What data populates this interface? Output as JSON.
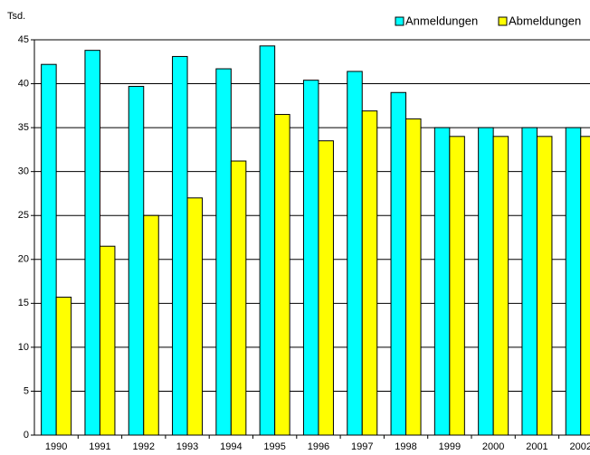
{
  "chart_data": {
    "type": "bar",
    "y_axis_label": "Tsd.",
    "categories": [
      "1990",
      "1991",
      "1992",
      "1993",
      "1994",
      "1995",
      "1996",
      "1997",
      "1998",
      "1999",
      "2000",
      "2001",
      "2002"
    ],
    "series": [
      {
        "name": "Anmeldungen",
        "color": "#00ffff",
        "values": [
          42.2,
          43.8,
          39.7,
          43.1,
          41.7,
          44.3,
          40.4,
          41.4,
          39.0,
          35.0,
          35.0,
          35.0,
          35.0
        ]
      },
      {
        "name": "Abmeldungen",
        "color": "#ffff00",
        "values": [
          15.7,
          21.5,
          25.0,
          27.0,
          31.2,
          36.5,
          33.5,
          36.9,
          36.0,
          34.0,
          34.0,
          34.0,
          34.0
        ]
      }
    ],
    "ylim": [
      0,
      45
    ],
    "yticks": [
      0,
      5,
      10,
      15,
      20,
      25,
      30,
      35,
      40,
      45
    ],
    "grid": true,
    "legend": "top-right"
  }
}
